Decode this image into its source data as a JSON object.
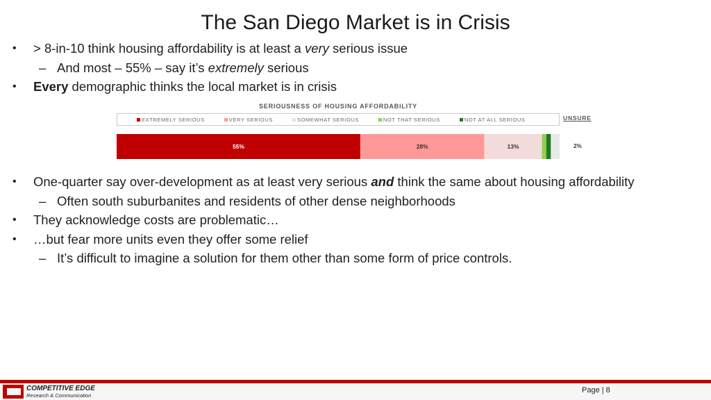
{
  "slide": {
    "title": "The San Diego Market is in Crisis"
  },
  "bullets_top": [
    {
      "mark": "•",
      "pre": "> 8-in-10 think housing affordability is at least a ",
      "em": "very",
      "post": " serious issue"
    },
    {
      "mark": "–",
      "text": "And most – 55% – say it’s ",
      "em": "extremely",
      "post": " serious"
    },
    {
      "mark": "•",
      "strong": "Every",
      "post": " demographic thinks the local market is in crisis"
    }
  ],
  "bullets_bottom": [
    {
      "mark": "•",
      "pre": "One-quarter say over-development as at least very serious ",
      "strong_em": "and",
      "post": " think the same about housing affordability"
    },
    {
      "mark": "–",
      "text": "Often south suburbanites and residents of other dense neighborhoods"
    },
    {
      "mark": "•",
      "text": "They acknowledge costs are problematic…"
    },
    {
      "mark": "•",
      "text": "…but fear more units even they offer some relief"
    },
    {
      "mark": "–",
      "text": "It’s difficult to imagine a solution for them other than some form of price controls."
    }
  ],
  "chart_data": {
    "type": "bar",
    "orientation": "horizontal-stacked",
    "title": "SERIOUSNESS OF HOUSING AFFORDABILITY",
    "series": [
      {
        "name": "EXTREMELY SERIOUS",
        "value": 55,
        "label": "55%",
        "color": "#c00000"
      },
      {
        "name": "VERY SERIOUS",
        "value": 28,
        "label": "28%",
        "color": "#ff9999"
      },
      {
        "name": "SOMEWHAT SERIOUS",
        "value": 13,
        "label": "13%",
        "color": "#f2dcdb"
      },
      {
        "name": "NOT THAT SERIOUS",
        "value": 1,
        "label": "",
        "color": "#92d050"
      },
      {
        "name": "NOT AT ALL SERIOUS",
        "value": 1,
        "label": "",
        "color": "#1e7b1e"
      }
    ],
    "unsure": {
      "header": "UNSURE",
      "value": 2,
      "label": "2%"
    },
    "xlim": [
      0,
      100
    ],
    "legend_position": "top"
  },
  "footer": {
    "logo_line1": "COMPETITIVE EDGE",
    "logo_line2": "Research & Communication",
    "page_label": "Page | 8"
  }
}
